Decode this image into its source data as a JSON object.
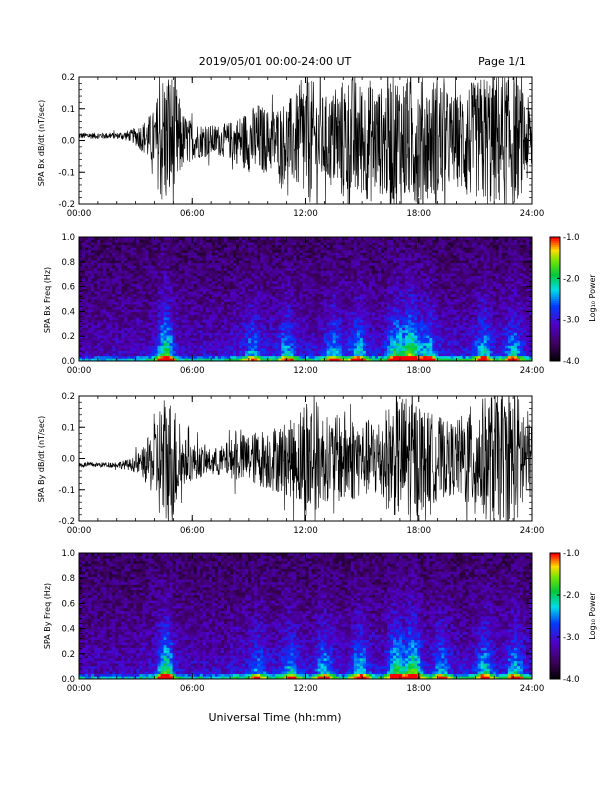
{
  "header": {
    "title": "2019/05/01  00:00-24:00 UT",
    "page": "Page 1/1"
  },
  "xlabel": "Universal Time (hh:mm)",
  "chart_data": [
    {
      "type": "line",
      "name": "Bx waveform",
      "ylabel": "SPA Bx dB/dt (nT/sec)",
      "xlim": [
        0,
        24
      ],
      "ylim": [
        -0.2,
        0.2
      ],
      "x_tick_labels": [
        "00:00",
        "06:00",
        "12:00",
        "18:00",
        "24:00"
      ],
      "y_tick_labels": [
        "-0.2",
        "-0.1",
        "0.0",
        "0.1",
        "0.2"
      ],
      "y_ticks": [
        -0.2,
        -0.1,
        0.0,
        0.1,
        0.2
      ],
      "x_hours": [
        0,
        1,
        2,
        2.8,
        3.4,
        4,
        4.4,
        4.7,
        5.0,
        5.5,
        6,
        7,
        7.5,
        8,
        8.5,
        9,
        9.5,
        10,
        10.5,
        11,
        11.5,
        12,
        12.5,
        13,
        13.5,
        14,
        14.5,
        15,
        15.5,
        16,
        16.5,
        17,
        17.5,
        18,
        18.5,
        19,
        19.5,
        20,
        20.5,
        21,
        21.5,
        22,
        22.5,
        23,
        23.5,
        24
      ],
      "envelope": [
        0.01,
        0.01,
        0.01,
        0.02,
        0.05,
        0.1,
        0.22,
        0.22,
        0.22,
        0.09,
        0.06,
        0.05,
        0.05,
        0.06,
        0.08,
        0.1,
        0.12,
        0.1,
        0.11,
        0.13,
        0.15,
        0.22,
        0.18,
        0.14,
        0.16,
        0.2,
        0.22,
        0.18,
        0.2,
        0.17,
        0.22,
        0.22,
        0.2,
        0.22,
        0.18,
        0.22,
        0.16,
        0.14,
        0.2,
        0.18,
        0.22,
        0.22,
        0.22,
        0.22,
        0.16,
        0.12
      ],
      "baseline": [
        0.015,
        0.015,
        0.015,
        0.015,
        0.01,
        0.0,
        0.0,
        0.0,
        0.0,
        0.0,
        0.0,
        0.0,
        0.0,
        0.0,
        0.0,
        0.0,
        0.0,
        0.0,
        0.0,
        0.0,
        0.0,
        0.0,
        0.0,
        0.0,
        0.0,
        0.0,
        0.0,
        0.0,
        0.0,
        0.0,
        0.0,
        0.0,
        0.0,
        0.0,
        0.0,
        0.0,
        0.0,
        0.0,
        0.0,
        0.0,
        0.0,
        0.0,
        0.0,
        0.0,
        0.0,
        0.0
      ]
    },
    {
      "type": "heatmap",
      "name": "Bx spectrogram",
      "ylabel": "SPA Bx Freq (Hz)",
      "xlim": [
        0,
        24
      ],
      "ylim": [
        0.0,
        1.0
      ],
      "x_tick_labels": [
        "00:00",
        "06:00",
        "12:00",
        "18:00",
        "24:00"
      ],
      "y_tick_labels": [
        "0.0",
        "0.2",
        "0.4",
        "0.6",
        "0.8",
        "1.0"
      ],
      "y_ticks": [
        0.0,
        0.2,
        0.4,
        0.6,
        0.8,
        1.0
      ],
      "colorbar": {
        "label": "Log₁₀ Power",
        "ticks": [
          -1.0,
          -2.0,
          -3.0,
          -4.0
        ],
        "tick_labels": [
          "-1.0",
          "-2.0",
          "-3.0",
          "-4.0"
        ],
        "range": [
          -4.0,
          -1.0
        ],
        "colormap": "rainbow (black-purple-blue-cyan-green-yellow-red)"
      },
      "bursts": [
        {
          "t": 4.6,
          "level": 0.95
        },
        {
          "t": 9.2,
          "level": 0.45
        },
        {
          "t": 11.0,
          "level": 0.5
        },
        {
          "t": 13.5,
          "level": 0.55
        },
        {
          "t": 14.8,
          "level": 0.6
        },
        {
          "t": 16.8,
          "level": 0.8
        },
        {
          "t": 17.6,
          "level": 0.95
        },
        {
          "t": 18.5,
          "level": 0.6
        },
        {
          "t": 21.4,
          "level": 0.6
        },
        {
          "t": 23.0,
          "level": 0.55
        }
      ]
    },
    {
      "type": "line",
      "name": "By waveform",
      "ylabel": "SPA By dB/dt (nT/sec)",
      "xlim": [
        0,
        24
      ],
      "ylim": [
        -0.2,
        0.2
      ],
      "x_tick_labels": [
        "00:00",
        "06:00",
        "12:00",
        "18:00",
        "24:00"
      ],
      "y_tick_labels": [
        "-0.2",
        "-0.1",
        "0.0",
        "0.1",
        "0.2"
      ],
      "y_ticks": [
        -0.2,
        -0.1,
        0.0,
        0.1,
        0.2
      ],
      "x_hours": [
        0,
        1,
        2,
        2.8,
        3.4,
        4,
        4.4,
        4.7,
        5.0,
        5.5,
        6,
        7,
        7.5,
        8,
        8.5,
        9,
        9.5,
        10,
        10.5,
        11,
        11.5,
        12,
        12.5,
        13,
        13.5,
        14,
        14.5,
        15,
        15.5,
        16,
        16.5,
        17,
        17.5,
        18,
        18.5,
        19,
        19.5,
        20,
        20.5,
        21,
        21.5,
        22,
        22.5,
        23,
        23.5,
        24
      ],
      "envelope": [
        0.008,
        0.008,
        0.01,
        0.02,
        0.05,
        0.12,
        0.22,
        0.22,
        0.2,
        0.08,
        0.06,
        0.04,
        0.05,
        0.06,
        0.08,
        0.08,
        0.09,
        0.1,
        0.11,
        0.12,
        0.13,
        0.22,
        0.2,
        0.14,
        0.13,
        0.16,
        0.14,
        0.12,
        0.13,
        0.14,
        0.18,
        0.2,
        0.22,
        0.18,
        0.15,
        0.14,
        0.12,
        0.12,
        0.16,
        0.18,
        0.2,
        0.22,
        0.2,
        0.22,
        0.2,
        0.12
      ],
      "baseline": [
        -0.02,
        -0.02,
        -0.02,
        -0.02,
        -0.015,
        -0.01,
        -0.01,
        -0.01,
        -0.01,
        -0.01,
        -0.01,
        -0.01,
        -0.01,
        0.0,
        0.0,
        0.0,
        0.0,
        0.0,
        0.0,
        0.0,
        0.0,
        0.0,
        0.0,
        0.0,
        0.0,
        0.0,
        0.0,
        0.0,
        0.0,
        0.0,
        0.0,
        0.0,
        0.0,
        0.0,
        0.0,
        0.0,
        0.0,
        0.0,
        0.0,
        0.0,
        0.0,
        0.0,
        0.0,
        0.0,
        0.0,
        0.0
      ]
    },
    {
      "type": "heatmap",
      "name": "By spectrogram",
      "ylabel": "SPA By Freq (Hz)",
      "xlim": [
        0,
        24
      ],
      "ylim": [
        0.0,
        1.0
      ],
      "x_tick_labels": [
        "00:00",
        "06:00",
        "12:00",
        "18:00",
        "24:00"
      ],
      "y_tick_labels": [
        "0.0",
        "0.2",
        "0.4",
        "0.6",
        "0.8",
        "1.0"
      ],
      "y_ticks": [
        0.0,
        0.2,
        0.4,
        0.6,
        0.8,
        1.0
      ],
      "colorbar": {
        "label": "Log₁₀ Power",
        "ticks": [
          -1.0,
          -2.0,
          -3.0,
          -4.0
        ],
        "tick_labels": [
          "-1.0",
          "-2.0",
          "-3.0",
          "-4.0"
        ],
        "range": [
          -4.0,
          -1.0
        ],
        "colormap": "rainbow (black-purple-blue-cyan-green-yellow-red)"
      },
      "bursts": [
        {
          "t": 4.6,
          "level": 0.95
        },
        {
          "t": 9.5,
          "level": 0.4
        },
        {
          "t": 11.2,
          "level": 0.5
        },
        {
          "t": 13.0,
          "level": 0.55
        },
        {
          "t": 14.9,
          "level": 0.65
        },
        {
          "t": 16.8,
          "level": 0.85
        },
        {
          "t": 17.7,
          "level": 0.95
        },
        {
          "t": 19.2,
          "level": 0.5
        },
        {
          "t": 21.5,
          "level": 0.6
        },
        {
          "t": 23.1,
          "level": 0.55
        }
      ]
    }
  ]
}
